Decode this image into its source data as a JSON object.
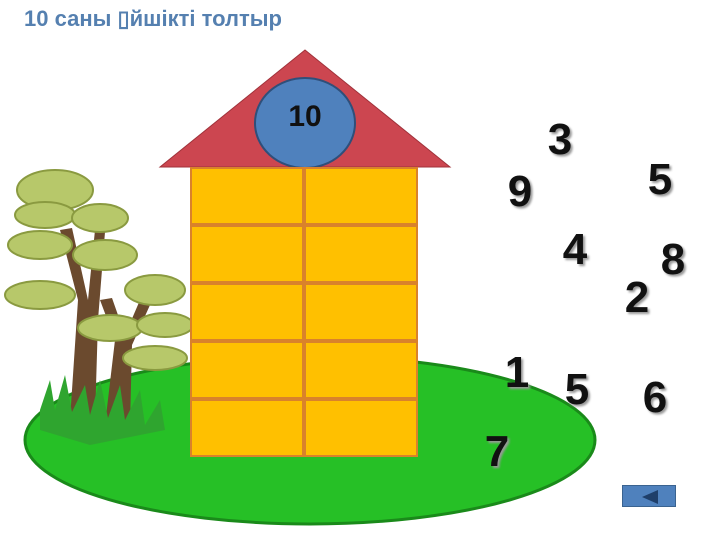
{
  "title": "10 саны ▯йшікті толтыр",
  "roof_number": "10",
  "numbers": [
    "3",
    "9",
    "5",
    "4",
    "8",
    "2",
    "1",
    "5",
    "6",
    "7"
  ],
  "colors": {
    "title": "#5580b0",
    "roof": "#cc4650",
    "roof_circle": "#4f81bd",
    "house_cells": "#ffc000",
    "ground": "#26c026",
    "button": "#4f81bd"
  },
  "house": {
    "rows": 5,
    "columns": 2
  },
  "nav": {
    "back_icon": "triangle-left-icon"
  }
}
